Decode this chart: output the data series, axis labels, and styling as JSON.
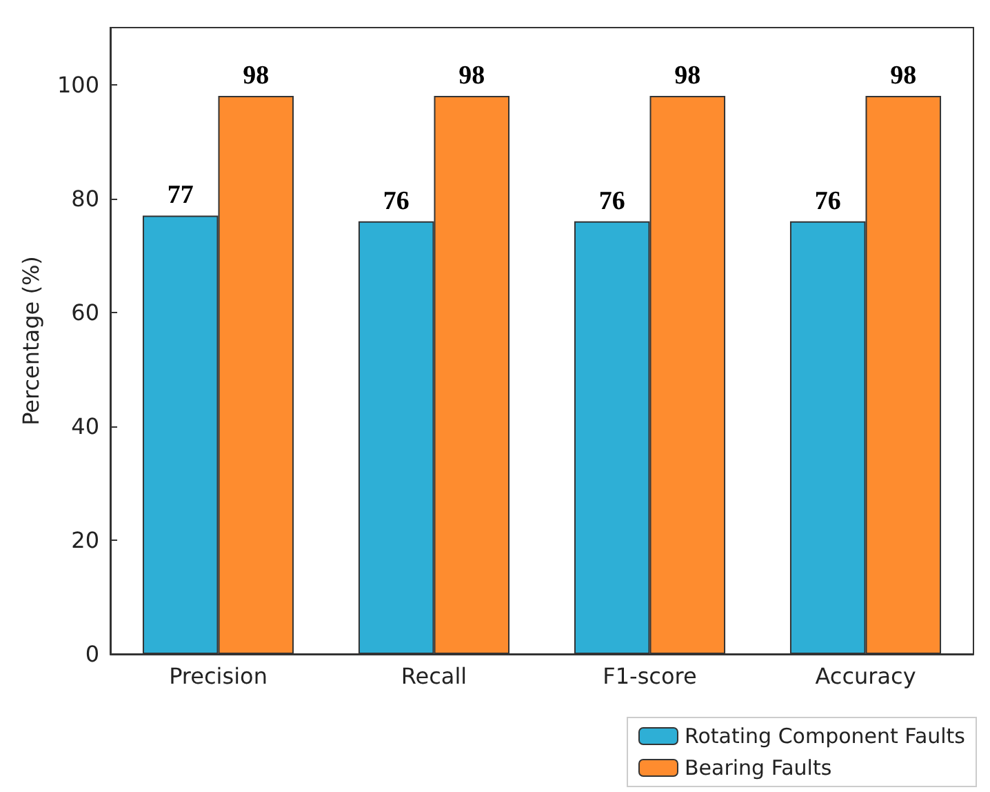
{
  "chart_data": {
    "type": "bar",
    "ylabel": "Percentage (%)",
    "categories": [
      "Precision",
      "Recall",
      "F1-score",
      "Accuracy"
    ],
    "series": [
      {
        "name": "Rotating Component Faults",
        "color": "#2eafd6",
        "values": [
          77,
          76,
          76,
          76
        ]
      },
      {
        "name": "Bearing Faults",
        "color": "#fe8c2f",
        "values": [
          98,
          98,
          98,
          98
        ]
      }
    ],
    "ylim": [
      0,
      110
    ],
    "yticks": [
      0,
      20,
      40,
      60,
      80,
      100
    ],
    "grid": false,
    "legend": "bottom right",
    "data_labels": true
  }
}
